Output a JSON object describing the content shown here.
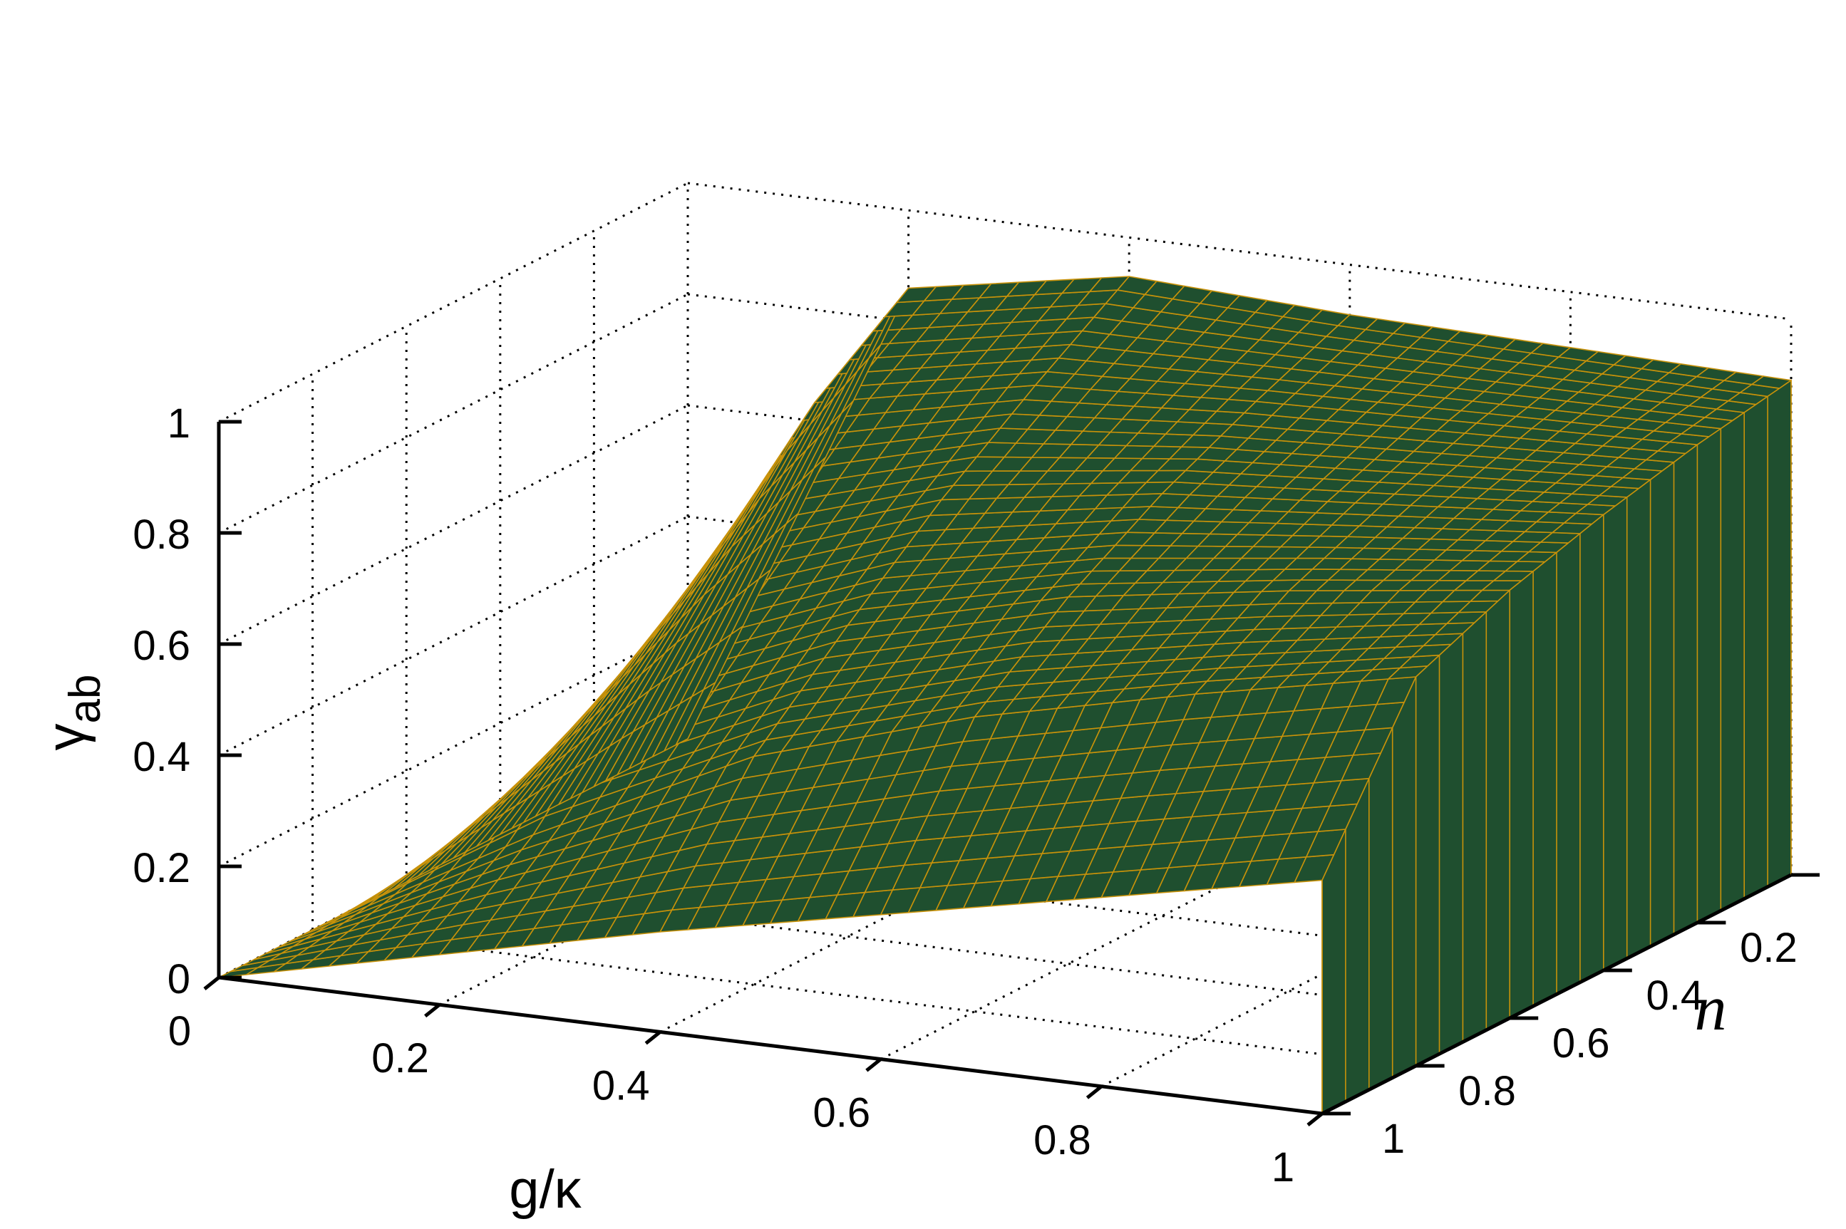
{
  "chart_data": {
    "type": "surface",
    "title": "",
    "xlabel": "g/κ",
    "ylabel": "n",
    "zlabel_main": "γ",
    "zlabel_sub": "ab",
    "x_ticks": [
      "0",
      "0.2",
      "0.4",
      "0.6",
      "0.8",
      "1"
    ],
    "y_ticks": [
      "0",
      "0.2",
      "0.4",
      "0.6",
      "0.8",
      "1"
    ],
    "z_ticks": [
      "0",
      "0.2",
      "0.4",
      "0.6",
      "0.8",
      "1"
    ],
    "xlim": [
      0,
      1
    ],
    "ylim": [
      0,
      1
    ],
    "zlim": [
      0,
      1
    ],
    "grid": true,
    "face_color": "#1f4f2f",
    "edge_color": "#c8920a",
    "x": [
      0,
      0.2,
      0.4,
      0.6,
      0.8,
      1.0
    ],
    "y": [
      0,
      0.2,
      0.4,
      0.6,
      0.8,
      1.0
    ],
    "z": [
      [
        0.0,
        0.86,
        0.93,
        0.91,
        0.9,
        0.89
      ],
      [
        0.0,
        0.74,
        0.82,
        0.84,
        0.85,
        0.86
      ],
      [
        0.0,
        0.57,
        0.7,
        0.76,
        0.79,
        0.82
      ],
      [
        0.0,
        0.4,
        0.56,
        0.66,
        0.72,
        0.77
      ],
      [
        0.0,
        0.22,
        0.41,
        0.53,
        0.62,
        0.7
      ],
      [
        0.0,
        0.09,
        0.18,
        0.26,
        0.34,
        0.42
      ]
    ]
  }
}
